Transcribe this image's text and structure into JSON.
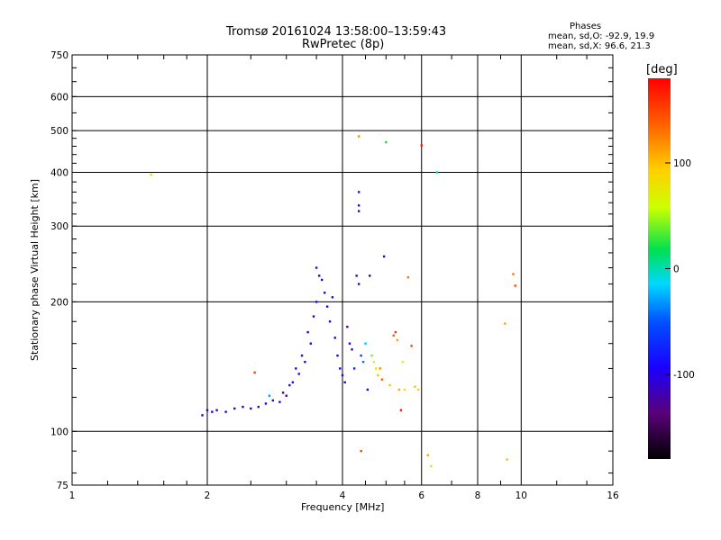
{
  "header": {
    "title_line1": "Tromsø 20161024 13:58:00–13:59:43",
    "title_line2": "RwPretec (8p)",
    "stats_title": "Phases",
    "stats_o": "mean, sd,O: -92.9, 19.9",
    "stats_x": "mean, sd,X:  96.6, 21.3"
  },
  "chart_data": {
    "type": "scatter",
    "xlabel": "Frequency [MHz]",
    "ylabel": "Stationary phase Virtual Height [km]",
    "xscale": "log",
    "yscale": "log",
    "xlim": [
      1,
      16
    ],
    "ylim": [
      75,
      750
    ],
    "xticks": [
      1,
      2,
      4,
      6,
      8,
      10,
      16
    ],
    "xtick_labels": [
      "1",
      "2",
      "4",
      "6",
      "8",
      "10",
      "16"
    ],
    "yticks": [
      75,
      100,
      200,
      300,
      400,
      500,
      600,
      750
    ],
    "ytick_labels": [
      "75",
      "100",
      "200",
      "300",
      "400",
      "500",
      "600",
      "750"
    ],
    "grid": true,
    "colorbar": {
      "label": "[deg]",
      "range": [
        -180,
        180
      ],
      "ticks": [
        100,
        0,
        -100
      ],
      "tick_labels": [
        "100",
        "0",
        "-100"
      ]
    },
    "points": [
      [
        1.5,
        395,
        90
      ],
      [
        1.95,
        109,
        -110
      ],
      [
        2.0,
        112,
        -100
      ],
      [
        2.05,
        111,
        -105
      ],
      [
        2.1,
        112,
        -95
      ],
      [
        2.2,
        111,
        -100
      ],
      [
        2.3,
        113,
        -110
      ],
      [
        2.4,
        114,
        -100
      ],
      [
        2.5,
        113,
        -90
      ],
      [
        2.55,
        137,
        150
      ],
      [
        2.6,
        114,
        -105
      ],
      [
        2.7,
        116,
        -100
      ],
      [
        2.75,
        121,
        -30
      ],
      [
        2.8,
        118,
        -110
      ],
      [
        2.9,
        117,
        -100
      ],
      [
        2.95,
        123,
        -100
      ],
      [
        3.0,
        121,
        -120
      ],
      [
        3.05,
        128,
        -110
      ],
      [
        3.1,
        130,
        -100
      ],
      [
        3.15,
        140,
        -110
      ],
      [
        3.2,
        136,
        -105
      ],
      [
        3.25,
        150,
        -110
      ],
      [
        3.3,
        145,
        -100
      ],
      [
        3.35,
        170,
        -110
      ],
      [
        3.4,
        160,
        -100
      ],
      [
        3.45,
        185,
        -110
      ],
      [
        3.5,
        200,
        -95
      ],
      [
        3.5,
        240,
        -110
      ],
      [
        3.55,
        230,
        -100
      ],
      [
        3.6,
        225,
        -110
      ],
      [
        3.65,
        210,
        -100
      ],
      [
        3.7,
        195,
        -90
      ],
      [
        3.75,
        180,
        -110
      ],
      [
        3.8,
        205,
        -100
      ],
      [
        3.85,
        165,
        -110
      ],
      [
        3.9,
        150,
        -100
      ],
      [
        3.95,
        140,
        -90
      ],
      [
        4.0,
        135,
        -110
      ],
      [
        4.05,
        130,
        -100
      ],
      [
        4.1,
        175,
        -120
      ],
      [
        4.15,
        160,
        -100
      ],
      [
        4.2,
        155,
        -110
      ],
      [
        4.25,
        140,
        -80
      ],
      [
        4.3,
        230,
        -110
      ],
      [
        4.35,
        220,
        -100
      ],
      [
        4.35,
        335,
        -110
      ],
      [
        4.35,
        325,
        -100
      ],
      [
        4.35,
        360,
        -90
      ],
      [
        4.4,
        150,
        -60
      ],
      [
        4.45,
        145,
        -40
      ],
      [
        4.5,
        160,
        -20
      ],
      [
        4.55,
        125,
        -110
      ],
      [
        4.6,
        230,
        -100
      ],
      [
        4.65,
        150,
        40
      ],
      [
        4.7,
        145,
        60
      ],
      [
        4.75,
        140,
        80
      ],
      [
        4.8,
        135,
        100
      ],
      [
        4.85,
        140,
        120
      ],
      [
        4.9,
        132,
        140
      ],
      [
        4.95,
        255,
        -110
      ],
      [
        5.0,
        470,
        20
      ],
      [
        5.1,
        128,
        100
      ],
      [
        5.2,
        167,
        140
      ],
      [
        5.25,
        170,
        160
      ],
      [
        5.3,
        163,
        110
      ],
      [
        5.35,
        125,
        110
      ],
      [
        5.4,
        112,
        170
      ],
      [
        5.45,
        145,
        60
      ],
      [
        5.5,
        125,
        80
      ],
      [
        5.6,
        228,
        130
      ],
      [
        5.7,
        158,
        150
      ],
      [
        5.8,
        127,
        100
      ],
      [
        5.9,
        125,
        90
      ],
      [
        6.0,
        462,
        170
      ],
      [
        6.2,
        88,
        110
      ],
      [
        6.3,
        83,
        90
      ],
      [
        6.5,
        400,
        0
      ],
      [
        9.2,
        178,
        110
      ],
      [
        9.3,
        86,
        100
      ],
      [
        9.6,
        232,
        130
      ],
      [
        9.7,
        218,
        150
      ],
      [
        4.35,
        485,
        120
      ],
      [
        4.4,
        90,
        150
      ]
    ]
  }
}
